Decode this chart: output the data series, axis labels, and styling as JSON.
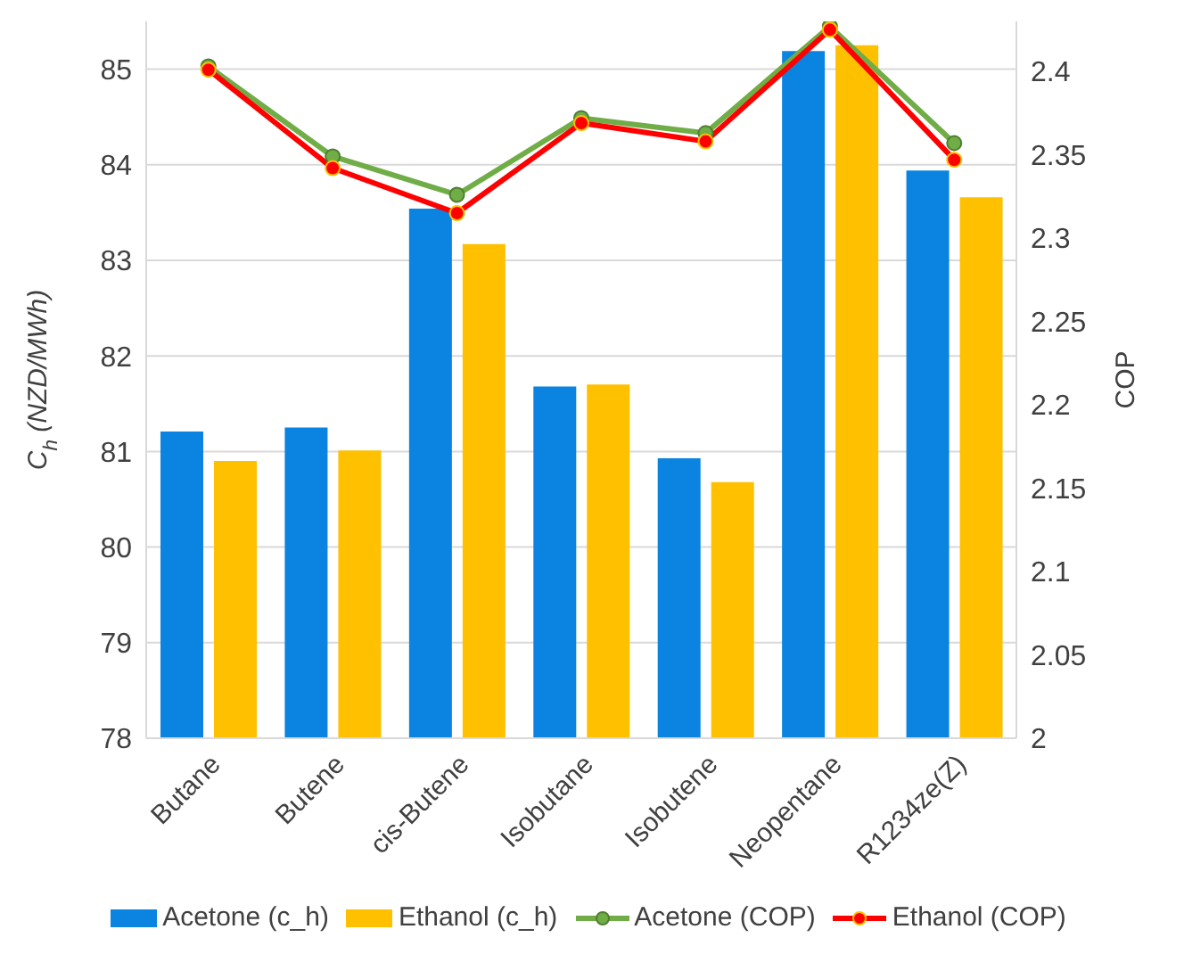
{
  "chart_data": {
    "type": "bar",
    "categories": [
      "Butane",
      "Butene",
      "cis-Butene",
      "Isobutane",
      "Isobutene",
      "Neopentane",
      "R1234ze(Z)"
    ],
    "ylabel": "C$_{h}$ (NZD/MWh)",
    "y2label": "COP",
    "ylim": [
      78,
      85.5
    ],
    "yticks": [
      78,
      79,
      80,
      81,
      82,
      83,
      84,
      85
    ],
    "y2lim": [
      2,
      2.43
    ],
    "y2ticks": [
      2,
      2.05,
      2.1,
      2.15,
      2.2,
      2.25,
      2.3,
      2.35,
      2.4
    ],
    "grid": "y",
    "legend": "bottom",
    "series": [
      {
        "name": "Acetone (c_h)",
        "color": "#0a84e0",
        "values": [
          81.21,
          81.25,
          83.54,
          81.68,
          80.93,
          85.19,
          83.94
        ]
      },
      {
        "name": "Ethanol (c_h)",
        "color": "#ffc000",
        "values": [
          80.9,
          81.01,
          83.17,
          81.7,
          80.68,
          85.25,
          83.66
        ]
      },
      {
        "name": "Acetone (COP)",
        "type": "line",
        "axis": "y2",
        "color": "#70ad47",
        "marker": "circle",
        "values": [
          2.403,
          2.349,
          2.326,
          2.372,
          2.363,
          2.427,
          2.357
        ]
      },
      {
        "name": "Ethanol (COP)",
        "type": "line",
        "axis": "y2",
        "color": "#ff0000",
        "marker": "circle",
        "values": [
          2.401,
          2.342,
          2.315,
          2.369,
          2.358,
          2.425,
          2.347
        ]
      }
    ]
  }
}
